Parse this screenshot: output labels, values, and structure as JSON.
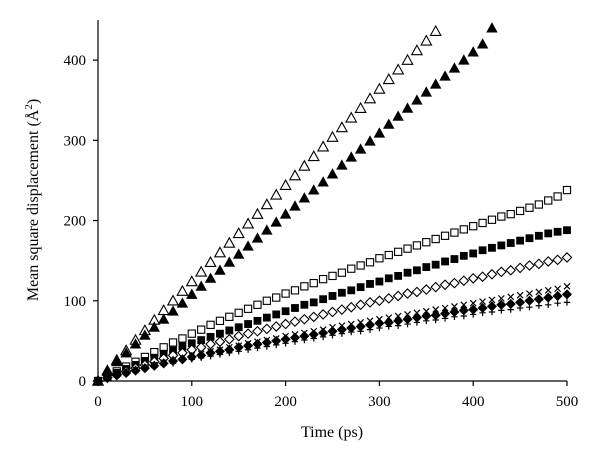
{
  "chart_data": {
    "type": "scatter",
    "title": "",
    "xlabel": "Time (ps)",
    "ylabel": "Mean square displacement (Å²)",
    "ylabel_main": "Mean square displacement (Å",
    "ylabel_sup": "2",
    "ylabel_end": ")",
    "xlim": [
      0,
      500
    ],
    "ylim": [
      0,
      450
    ],
    "xticks": [
      0,
      100,
      200,
      300,
      400,
      500
    ],
    "yticks": [
      0,
      100,
      200,
      300,
      400
    ],
    "grid": false,
    "legend": "none",
    "series": [
      {
        "marker": "triangle-open",
        "x": [
          0,
          10,
          20,
          30,
          40,
          50,
          60,
          70,
          80,
          90,
          100,
          110,
          120,
          130,
          140,
          150,
          160,
          170,
          180,
          190,
          200,
          210,
          220,
          230,
          240,
          250,
          260,
          270,
          280,
          290,
          300,
          310,
          320,
          330,
          340,
          350,
          360
        ],
        "y": [
          0,
          13,
          26,
          38,
          51,
          63,
          76,
          88,
          100,
          112,
          124,
          136,
          148,
          160,
          172,
          184,
          196,
          208,
          220,
          232,
          244,
          256,
          268,
          280,
          292,
          304,
          316,
          328,
          340,
          352,
          364,
          376,
          388,
          400,
          412,
          424,
          436
        ]
      },
      {
        "marker": "triangle-filled",
        "x": [
          0,
          10,
          20,
          30,
          40,
          50,
          60,
          70,
          80,
          90,
          100,
          110,
          120,
          130,
          140,
          150,
          160,
          170,
          180,
          190,
          200,
          210,
          220,
          230,
          240,
          250,
          260,
          270,
          280,
          290,
          300,
          310,
          320,
          330,
          340,
          350,
          360,
          370,
          380,
          390,
          400,
          410,
          420
        ],
        "y": [
          0,
          12,
          24,
          35,
          46,
          57,
          67,
          77,
          87,
          97,
          108,
          118,
          128,
          138,
          148,
          158,
          168,
          178,
          188,
          198,
          208,
          218,
          228,
          238,
          248,
          258,
          269,
          279,
          289,
          299,
          309,
          320,
          330,
          340,
          350,
          360,
          370,
          380,
          390,
          400,
          410,
          420,
          440
        ]
      },
      {
        "marker": "square-open",
        "x": [
          0,
          10,
          20,
          30,
          40,
          50,
          60,
          70,
          80,
          90,
          100,
          110,
          120,
          130,
          140,
          150,
          160,
          170,
          180,
          190,
          200,
          210,
          220,
          230,
          240,
          250,
          260,
          270,
          280,
          290,
          300,
          310,
          320,
          330,
          340,
          350,
          360,
          370,
          380,
          390,
          400,
          410,
          420,
          430,
          440,
          450,
          460,
          470,
          480,
          490,
          500
        ],
        "y": [
          0,
          6,
          12,
          18,
          24,
          30,
          36,
          42,
          48,
          53,
          59,
          64,
          70,
          75,
          80,
          85,
          90,
          95,
          100,
          104,
          109,
          113,
          118,
          122,
          127,
          131,
          135,
          140,
          144,
          148,
          153,
          157,
          161,
          165,
          169,
          173,
          177,
          181,
          185,
          189,
          193,
          197,
          201,
          205,
          208,
          212,
          216,
          220,
          225,
          230,
          238
        ]
      },
      {
        "marker": "square-filled",
        "x": [
          0,
          10,
          20,
          30,
          40,
          50,
          60,
          70,
          80,
          90,
          100,
          110,
          120,
          130,
          140,
          150,
          160,
          170,
          180,
          190,
          200,
          210,
          220,
          230,
          240,
          250,
          260,
          270,
          280,
          290,
          300,
          310,
          320,
          330,
          340,
          350,
          360,
          370,
          380,
          390,
          400,
          410,
          420,
          430,
          440,
          450,
          460,
          470,
          480,
          490,
          500
        ],
        "y": [
          0,
          5,
          10,
          15,
          20,
          25,
          29,
          34,
          38,
          43,
          47,
          51,
          55,
          59,
          63,
          67,
          71,
          75,
          79,
          83,
          87,
          91,
          95,
          98,
          102,
          106,
          110,
          113,
          117,
          121,
          124,
          128,
          131,
          135,
          138,
          142,
          145,
          149,
          152,
          156,
          159,
          163,
          166,
          169,
          172,
          175,
          178,
          181,
          184,
          186,
          188
        ]
      },
      {
        "marker": "diamond-open",
        "x": [
          0,
          10,
          20,
          30,
          40,
          50,
          60,
          70,
          80,
          90,
          100,
          110,
          120,
          130,
          140,
          150,
          160,
          170,
          180,
          190,
          200,
          210,
          220,
          230,
          240,
          250,
          260,
          270,
          280,
          290,
          300,
          310,
          320,
          330,
          340,
          350,
          360,
          370,
          380,
          390,
          400,
          410,
          420,
          430,
          440,
          450,
          460,
          470,
          480,
          490,
          500
        ],
        "y": [
          0,
          4,
          8,
          12,
          16,
          20,
          24,
          28,
          32,
          35,
          39,
          42,
          46,
          49,
          52,
          56,
          59,
          62,
          65,
          68,
          71,
          74,
          77,
          80,
          83,
          86,
          89,
          92,
          95,
          98,
          100,
          103,
          106,
          109,
          111,
          114,
          117,
          120,
          122,
          125,
          128,
          130,
          133,
          136,
          138,
          141,
          144,
          146,
          149,
          151,
          154
        ]
      },
      {
        "marker": "cross",
        "x": [
          0,
          10,
          20,
          30,
          40,
          50,
          60,
          70,
          80,
          90,
          100,
          110,
          120,
          130,
          140,
          150,
          160,
          170,
          180,
          190,
          200,
          210,
          220,
          230,
          240,
          250,
          260,
          270,
          280,
          290,
          300,
          310,
          320,
          330,
          340,
          350,
          360,
          370,
          380,
          390,
          400,
          410,
          420,
          430,
          440,
          450,
          460,
          470,
          480,
          490,
          500
        ],
        "y": [
          0,
          4,
          8,
          11,
          14,
          17,
          20,
          23,
          26,
          29,
          32,
          34,
          37,
          39,
          42,
          44,
          47,
          49,
          51,
          53,
          56,
          58,
          60,
          62,
          64,
          67,
          69,
          71,
          73,
          75,
          77,
          79,
          81,
          83,
          85,
          87,
          89,
          91,
          93,
          95,
          97,
          99,
          101,
          103,
          105,
          107,
          109,
          111,
          113,
          115,
          118
        ]
      },
      {
        "marker": "diamond-filled",
        "x": [
          0,
          10,
          20,
          30,
          40,
          50,
          60,
          70,
          80,
          90,
          100,
          110,
          120,
          130,
          140,
          150,
          160,
          170,
          180,
          190,
          200,
          210,
          220,
          230,
          240,
          250,
          260,
          270,
          280,
          290,
          300,
          310,
          320,
          330,
          340,
          350,
          360,
          370,
          380,
          390,
          400,
          410,
          420,
          430,
          440,
          450,
          460,
          470,
          480,
          490,
          500
        ],
        "y": [
          0,
          4,
          7,
          10,
          13,
          16,
          19,
          22,
          25,
          27,
          30,
          32,
          35,
          37,
          39,
          42,
          44,
          46,
          48,
          50,
          52,
          54,
          56,
          58,
          60,
          62,
          64,
          66,
          68,
          70,
          72,
          73,
          75,
          77,
          79,
          81,
          82,
          84,
          86,
          88,
          89,
          91,
          93,
          95,
          96,
          98,
          100,
          102,
          104,
          106,
          108
        ]
      },
      {
        "marker": "plus",
        "x": [
          0,
          10,
          20,
          30,
          40,
          50,
          60,
          70,
          80,
          90,
          100,
          110,
          120,
          130,
          140,
          150,
          160,
          170,
          180,
          190,
          200,
          210,
          220,
          230,
          240,
          250,
          260,
          270,
          280,
          290,
          300,
          310,
          320,
          330,
          340,
          350,
          360,
          370,
          380,
          390,
          400,
          410,
          420,
          430,
          440,
          450,
          460,
          470,
          480,
          490,
          500
        ],
        "y": [
          0,
          3,
          6,
          9,
          12,
          15,
          17,
          20,
          22,
          25,
          27,
          29,
          31,
          33,
          35,
          37,
          39,
          41,
          43,
          45,
          47,
          49,
          51,
          53,
          55,
          57,
          59,
          61,
          62,
          64,
          66,
          68,
          69,
          71,
          73,
          75,
          76,
          78,
          80,
          81,
          83,
          85,
          86,
          88,
          89,
          91,
          92,
          94,
          95,
          97,
          98
        ]
      }
    ]
  }
}
